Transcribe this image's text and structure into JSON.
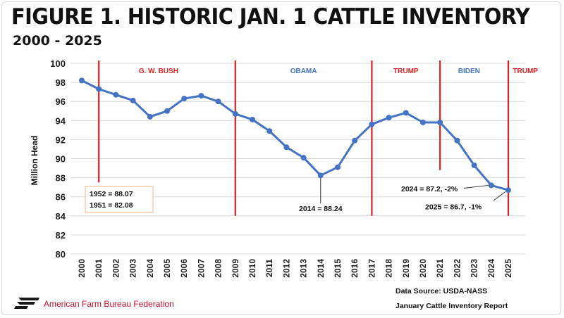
{
  "header": {
    "title": "FIGURE 1. HISTORIC JAN. 1 CATTLE INVENTORY",
    "subtitle": "2000 - 2025"
  },
  "footer": {
    "org_name": "American Farm Bureau Federation",
    "source_line1": "Data Source:  USDA-NASS",
    "source_line2": "January Cattle Inventory Report"
  },
  "colors": {
    "line": "#4472C4",
    "divider": "#E02020",
    "bush_label": "#E02020",
    "obama_label": "#4472C4",
    "trump_label": "#E02020",
    "biden_label": "#4472C4",
    "brand": "#C8102E",
    "callout_border": "#F4B183"
  },
  "chart_data": {
    "type": "line",
    "title": "FIGURE 1. HISTORIC JAN. 1 CATTLE INVENTORY",
    "subtitle": "2000 - 2025",
    "xlabel": "",
    "ylabel": "Million Head",
    "ylim": [
      80,
      100
    ],
    "yticks": [
      80,
      82,
      84,
      86,
      88,
      90,
      92,
      94,
      96,
      98,
      100
    ],
    "grid": "horizontal",
    "categories": [
      "2000",
      "2001",
      "2002",
      "2003",
      "2004",
      "2005",
      "2006",
      "2007",
      "2008",
      "2009",
      "2010",
      "2011",
      "2012",
      "2013",
      "2014",
      "2015",
      "2016",
      "2017",
      "2018",
      "2019",
      "2020",
      "2021",
      "2022",
      "2023",
      "2024",
      "2025"
    ],
    "series": [
      {
        "values": [
          98.2,
          97.3,
          96.7,
          96.1,
          94.4,
          95.0,
          96.3,
          96.6,
          96.0,
          94.7,
          94.1,
          92.9,
          91.2,
          90.1,
          88.24,
          89.1,
          91.9,
          93.6,
          94.3,
          94.8,
          93.8,
          93.8,
          91.9,
          89.3,
          87.2,
          86.7
        ]
      }
    ],
    "dividers": [
      {
        "year": 2001,
        "top": 100,
        "bottom": 87.5
      },
      {
        "year": 2009,
        "top": 100,
        "bottom": 84.0
      },
      {
        "year": 2017,
        "top": 100,
        "bottom": 84.0
      },
      {
        "year": 2021,
        "top": 100,
        "bottom": 88.8
      },
      {
        "year": 2025,
        "top": 100,
        "bottom": 84.0
      }
    ],
    "period_labels": [
      {
        "text": "G. W. BUSH",
        "x": 2004.5,
        "y": 98.95,
        "color_key": "bush_label"
      },
      {
        "text": "OBAMA",
        "x": 2013.0,
        "y": 98.95,
        "color_key": "obama_label"
      },
      {
        "text": "TRUMP",
        "x": 2019.0,
        "y": 98.95,
        "color_key": "trump_label"
      },
      {
        "text": "BIDEN",
        "x": 2022.7,
        "y": 98.95,
        "color_key": "biden_label"
      },
      {
        "text": "TRUMP",
        "x": 2026.0,
        "y": 98.95,
        "color_key": "trump_label"
      }
    ],
    "annotations": {
      "box_line1": "1952 = 88.07",
      "box_line2": "1951 = 82.08",
      "note_2014": "2014 = 88.24",
      "note_2024": "2024 = 87.2, -2%",
      "note_2025": "2025 = 86.7, -1%"
    }
  }
}
